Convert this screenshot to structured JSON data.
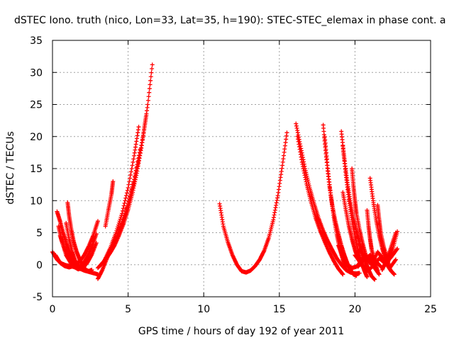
{
  "chart_data": {
    "type": "scatter",
    "title": "dSTEC Iono. truth (nico, Lon=33, Lat=35, h=190): STEC-STEC_elemax in phase cont. a",
    "xlabel": "GPS time / hours of day 192 of year 2011",
    "ylabel": "dSTEC  / TECUs",
    "xlim": [
      0,
      25
    ],
    "ylim": [
      -5,
      35
    ],
    "xticks": [
      0,
      5,
      10,
      15,
      20,
      25
    ],
    "yticks": [
      -5,
      0,
      5,
      10,
      15,
      20,
      25,
      30,
      35
    ],
    "grid": true,
    "marker": "+",
    "colors": {
      "series": "#ff0000",
      "axis": "#000000",
      "grid": "#a0a0a0"
    },
    "series": [
      {
        "x": [
          0.0,
          0.3,
          0.6,
          0.9,
          1.2,
          1.5,
          1.8,
          2.1,
          2.4,
          2.7,
          3.0
        ],
        "y": [
          2.0,
          0.8,
          0.2,
          -0.1,
          -0.2,
          -0.4,
          -0.6,
          -0.9,
          -1.1,
          -1.3,
          -1.5
        ]
      },
      {
        "x": [
          0.3,
          0.5,
          0.7,
          0.9,
          1.1,
          1.3,
          1.5,
          1.7,
          1.9,
          2.1,
          2.3,
          2.6,
          2.9
        ],
        "y": [
          8.3,
          6.8,
          5.0,
          3.4,
          2.0,
          0.8,
          0.1,
          -0.3,
          -0.2,
          0.4,
          1.2,
          2.8,
          4.8
        ]
      },
      {
        "x": [
          0.4,
          0.6,
          0.9,
          1.2,
          1.5,
          1.8,
          2.1,
          2.4,
          2.7,
          3.0
        ],
        "y": [
          6.0,
          3.8,
          1.5,
          0.3,
          0.1,
          0.5,
          1.5,
          2.9,
          4.6,
          6.8
        ]
      },
      {
        "x": [
          0.5,
          0.8,
          1.1,
          1.4,
          1.7,
          2.0,
          2.3,
          2.6,
          2.9
        ],
        "y": [
          4.5,
          2.5,
          0.8,
          -0.3,
          -0.7,
          -0.5,
          0.3,
          1.6,
          3.4
        ]
      },
      {
        "x": [
          1.0,
          1.1,
          1.25,
          1.4,
          1.6,
          1.8,
          2.0,
          2.2,
          2.4,
          2.6
        ],
        "y": [
          9.7,
          7.6,
          5.4,
          3.6,
          2.0,
          0.8,
          -0.2,
          -0.8,
          -1.0,
          -0.8
        ]
      },
      {
        "x": [
          0.9,
          1.1,
          1.3,
          1.5,
          1.7,
          1.9,
          2.1
        ],
        "y": [
          6.5,
          4.0,
          2.0,
          0.6,
          -0.2,
          -0.5,
          -0.3
        ]
      },
      {
        "x": [
          0.2,
          0.5,
          0.8,
          1.1,
          1.4,
          1.7
        ],
        "y": [
          1.5,
          0.3,
          -0.2,
          -0.4,
          -0.2,
          0.3
        ]
      },
      {
        "x": [
          3.0,
          3.3,
          3.6,
          3.9,
          4.2,
          4.5,
          4.8,
          5.1,
          5.4,
          5.7,
          6.0,
          6.3,
          6.6
        ],
        "y": [
          -2.2,
          -0.8,
          1.0,
          2.6,
          4.0,
          5.8,
          7.8,
          10.2,
          13.0,
          16.3,
          20.2,
          25.0,
          31.2
        ]
      },
      {
        "x": [
          3.5,
          3.7,
          3.9,
          4.0
        ],
        "y": [
          6.0,
          8.6,
          11.0,
          13.0
        ]
      },
      {
        "x": [
          3.2,
          3.5,
          3.8,
          4.1,
          4.4,
          4.7,
          5.0,
          5.3,
          5.6,
          5.9,
          6.2
        ],
        "y": [
          0.0,
          0.8,
          1.8,
          3.0,
          4.6,
          6.4,
          8.6,
          11.3,
          14.6,
          18.6,
          23.3
        ]
      },
      {
        "x": [
          3.0,
          3.4,
          3.8,
          4.2,
          4.6,
          5.0,
          5.4,
          5.8
        ],
        "y": [
          -0.5,
          0.5,
          2.0,
          4.0,
          6.5,
          9.5,
          13.3,
          18.0
        ]
      },
      {
        "x": [
          3.4,
          3.8,
          4.2,
          4.6,
          5.0,
          5.4,
          5.7
        ],
        "y": [
          0.5,
          2.5,
          5.0,
          8.0,
          12.0,
          17.0,
          21.5
        ]
      },
      {
        "x": [
          11.05,
          11.3,
          11.6,
          11.9,
          12.2,
          12.5,
          12.8,
          13.1,
          13.4,
          13.7,
          14.0,
          14.3,
          14.6,
          14.9,
          15.2,
          15.5
        ],
        "y": [
          9.5,
          6.0,
          3.5,
          1.5,
          0.0,
          -1.0,
          -1.2,
          -0.9,
          -0.2,
          0.8,
          2.2,
          4.2,
          7.0,
          10.8,
          15.5,
          20.6
        ]
      },
      {
        "x": [
          16.1,
          16.4,
          16.7,
          17.0,
          17.3,
          17.6,
          17.9,
          18.2,
          18.5,
          18.8,
          19.1,
          19.4,
          19.7,
          20.0,
          20.3
        ],
        "y": [
          22.0,
          18.5,
          15.0,
          12.0,
          9.5,
          7.2,
          5.3,
          3.7,
          2.3,
          1.0,
          0.0,
          -0.8,
          -1.2,
          -1.4,
          -1.3
        ]
      },
      {
        "x": [
          16.2,
          16.5,
          16.8,
          17.1,
          17.4,
          17.7,
          18.0,
          18.3,
          18.6,
          18.9,
          19.2
        ],
        "y": [
          20.0,
          16.0,
          12.6,
          9.8,
          7.3,
          5.3,
          3.6,
          2.0,
          0.6,
          -0.6,
          -1.5
        ]
      },
      {
        "x": [
          17.9,
          18.1,
          18.3,
          18.5,
          18.7,
          18.9,
          19.1,
          19.3,
          19.5,
          19.7,
          19.9,
          20.1
        ],
        "y": [
          21.8,
          16.8,
          12.5,
          9.3,
          6.8,
          4.8,
          3.0,
          1.5,
          0.2,
          -0.8,
          -1.5,
          -1.7
        ]
      },
      {
        "x": [
          18.0,
          18.2,
          18.4,
          18.6,
          18.8,
          19.0,
          19.2,
          19.4
        ],
        "y": [
          20.0,
          15.0,
          10.8,
          7.4,
          4.7,
          2.5,
          0.8,
          -0.5
        ]
      },
      {
        "x": [
          19.1,
          19.3,
          19.5,
          19.7,
          19.9,
          20.1,
          20.3,
          20.5,
          20.7,
          20.9,
          21.1,
          21.3
        ],
        "y": [
          20.8,
          16.5,
          12.8,
          9.7,
          7.2,
          5.2,
          3.4,
          1.8,
          0.4,
          -0.8,
          -1.8,
          -2.3
        ]
      },
      {
        "x": [
          19.2,
          19.4,
          19.6,
          19.8,
          20.0,
          20.2,
          20.4,
          20.6,
          20.8
        ],
        "y": [
          18.5,
          14.0,
          10.2,
          7.0,
          4.4,
          2.3,
          0.6,
          -0.8,
          -1.9
        ]
      },
      {
        "x": [
          19.2,
          19.4,
          19.6,
          19.8,
          20.0,
          20.2,
          20.4
        ],
        "y": [
          11.3,
          8.5,
          6.0,
          4.0,
          2.3,
          1.0,
          0.0
        ]
      },
      {
        "x": [
          19.8,
          19.9,
          20.0,
          20.1,
          20.3,
          20.5,
          20.7
        ],
        "y": [
          15.0,
          12.3,
          10.0,
          8.0,
          5.5,
          3.4,
          1.6
        ]
      },
      {
        "x": [
          18.9,
          19.2,
          19.5,
          19.8,
          20.1,
          20.4,
          20.7,
          21.0,
          21.3,
          21.6
        ],
        "y": [
          3.0,
          1.2,
          0.0,
          -0.5,
          -0.3,
          0.5,
          1.5,
          0.8,
          -0.5,
          -1.5
        ]
      },
      {
        "x": [
          21.0,
          21.2,
          21.4,
          21.6,
          21.8,
          22.0,
          22.2,
          22.4,
          22.6
        ],
        "y": [
          13.5,
          10.0,
          7.0,
          4.6,
          2.6,
          1.0,
          -0.3,
          -1.0,
          -1.5
        ]
      },
      {
        "x": [
          20.8,
          20.9,
          21.0,
          21.1,
          21.3,
          21.5
        ],
        "y": [
          8.5,
          6.0,
          4.0,
          2.4,
          0.5,
          -1.0
        ]
      },
      {
        "x": [
          21.5,
          21.6,
          21.7,
          21.9,
          22.1,
          22.3
        ],
        "y": [
          9.3,
          7.0,
          5.0,
          2.8,
          1.0,
          -0.5
        ]
      },
      {
        "x": [
          20.2,
          20.6,
          21.0,
          21.4,
          21.8,
          22.2,
          22.5,
          22.8
        ],
        "y": [
          -0.3,
          0.8,
          1.5,
          0.5,
          -0.5,
          0.5,
          2.5,
          5.2
        ]
      },
      {
        "x": [
          20.0,
          20.4,
          20.8,
          21.2,
          21.6,
          22.0,
          22.4,
          22.8
        ],
        "y": [
          1.5,
          0.2,
          -1.0,
          -0.2,
          1.0,
          0.2,
          1.2,
          2.5
        ]
      },
      {
        "x": [
          20.3,
          20.7,
          21.1,
          21.5,
          21.9,
          22.3,
          22.7
        ],
        "y": [
          2.5,
          1.0,
          0.0,
          2.0,
          0.8,
          -0.5,
          0.8
        ]
      },
      {
        "x": [
          21.8,
          22.1,
          22.4,
          22.7
        ],
        "y": [
          -0.8,
          0.8,
          2.8,
          5.0
        ]
      }
    ]
  }
}
